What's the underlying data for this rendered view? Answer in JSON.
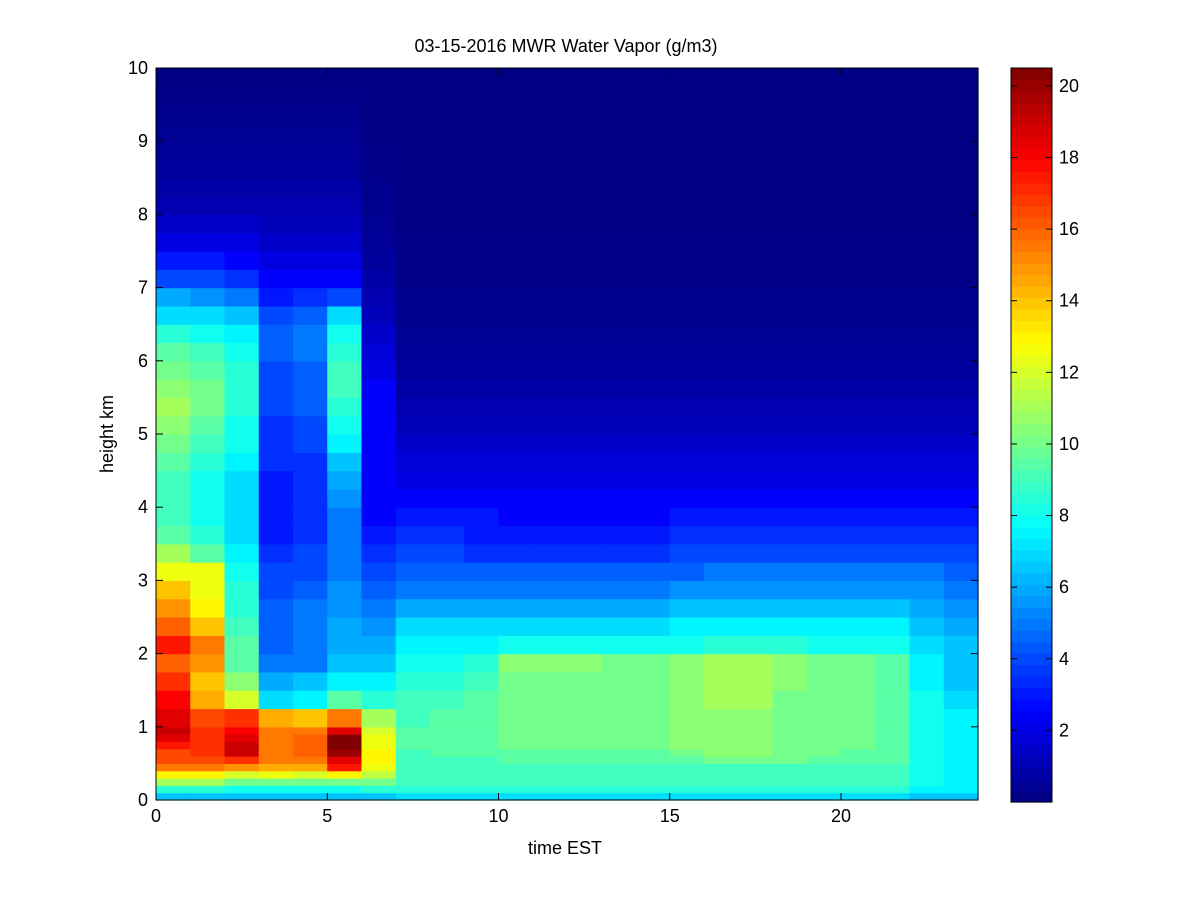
{
  "chart_data": {
    "type": "heatmap",
    "title": "03-15-2016 MWR Water Vapor (g/m3)",
    "xlabel": "time EST",
    "ylabel": "height km",
    "xlim": [
      0,
      24
    ],
    "ylim": [
      0,
      10
    ],
    "xticks": [
      0,
      5,
      10,
      15,
      20
    ],
    "yticks": [
      0,
      1,
      2,
      3,
      4,
      5,
      6,
      7,
      8,
      9,
      10
    ],
    "colorbar": {
      "colormap": "jet",
      "range": [
        0,
        20.5
      ],
      "ticks": [
        2,
        4,
        6,
        8,
        10,
        12,
        14,
        16,
        18,
        20
      ]
    },
    "x_bins_hours": [
      0,
      1,
      2,
      3,
      4,
      5,
      6,
      7,
      8,
      9,
      10,
      11,
      12,
      13,
      14,
      15,
      16,
      17,
      18,
      19,
      20,
      21,
      22,
      23
    ],
    "x_bin_width_hours": 1,
    "height_levels_km": [
      0,
      0.1,
      0.2,
      0.3,
      0.4,
      0.5,
      0.6,
      0.7,
      0.8,
      0.9,
      1.0,
      1.25,
      1.5,
      1.75,
      2.0,
      2.25,
      2.5,
      2.75,
      3.0,
      3.25,
      3.5,
      3.75,
      4.0,
      4.25,
      4.5,
      4.75,
      5.0,
      5.25,
      5.5,
      5.75,
      6.0,
      6.25,
      6.5,
      6.75,
      7.0,
      7.25,
      7.5,
      7.75,
      8.0,
      8.25,
      8.5,
      8.75,
      9.0,
      9.25,
      9.5,
      9.75
    ],
    "series_by_hour": [
      {
        "name": "0",
        "values": [
          6.5,
          8.5,
          11,
          13,
          15.5,
          16.5,
          16.5,
          17.5,
          18.5,
          19,
          18.5,
          18,
          17,
          16,
          17.5,
          16,
          15,
          14,
          12.5,
          11,
          9.5,
          9,
          9,
          9,
          9.5,
          10,
          10.5,
          11,
          10.5,
          10,
          9.5,
          8.5,
          7,
          6,
          4,
          3,
          2,
          1.5,
          1,
          0.8,
          0.6,
          0.5,
          0.4,
          0.3,
          0.2,
          0.1
        ]
      },
      {
        "name": "1",
        "values": [
          6.5,
          8.5,
          11,
          13,
          15.5,
          16.5,
          17,
          17,
          17,
          17,
          16.5,
          14.5,
          14,
          15,
          15.5,
          14,
          13,
          12.5,
          12.5,
          9.5,
          8.5,
          8,
          8,
          8,
          8.5,
          9,
          9.5,
          10,
          10,
          9.5,
          9,
          8,
          7,
          5.5,
          4,
          3,
          2,
          1.5,
          1,
          0.8,
          0.6,
          0.5,
          0.4,
          0.3,
          0.2,
          0.1
        ]
      },
      {
        "name": "2",
        "values": [
          6.5,
          8,
          10,
          12,
          15,
          17,
          19,
          19,
          18.5,
          18,
          17,
          12,
          10.5,
          9.5,
          9.5,
          9,
          8.5,
          8.5,
          8,
          7.5,
          7,
          7,
          7,
          7,
          7.5,
          8,
          8,
          8.5,
          8.5,
          8.5,
          8,
          7.5,
          6.5,
          5,
          3.5,
          2.5,
          2,
          1.5,
          1,
          0.8,
          0.6,
          0.5,
          0.4,
          0.3,
          0.2,
          0.1
        ]
      },
      {
        "name": "3",
        "values": [
          6.5,
          8,
          10,
          12.5,
          14.5,
          15.5,
          15.5,
          15.5,
          15.5,
          15.5,
          14.5,
          7,
          6,
          5,
          4.5,
          4.5,
          4.5,
          4,
          4,
          3.5,
          3,
          3,
          3,
          3,
          3.5,
          3.5,
          3.5,
          4,
          4,
          4,
          4.5,
          4.5,
          4,
          3,
          2.5,
          2,
          1.5,
          1.2,
          1,
          0.8,
          0.6,
          0.5,
          0.4,
          0.3,
          0.2,
          0.1
        ]
      },
      {
        "name": "4",
        "values": [
          6.5,
          8,
          10,
          12,
          14.5,
          15.5,
          16,
          16,
          16,
          15.5,
          14,
          7.5,
          6.5,
          5,
          5,
          5,
          5,
          4.5,
          4,
          4,
          3.5,
          3.5,
          3.5,
          3.5,
          3.5,
          4,
          4,
          4.5,
          4.5,
          4.5,
          5,
          5,
          4.5,
          3.5,
          2.5,
          2,
          1.5,
          1.2,
          1,
          0.8,
          0.6,
          0.5,
          0.4,
          0.3,
          0.2,
          0.1
        ]
      },
      {
        "name": "5",
        "values": [
          6.5,
          8,
          10,
          13,
          17.5,
          18.5,
          20,
          20.5,
          20.5,
          18.5,
          15.5,
          9.5,
          7.5,
          6.5,
          6,
          6,
          5.5,
          5.5,
          5,
          5,
          5,
          5,
          5.5,
          6,
          6.5,
          7.5,
          8,
          8.5,
          9,
          9,
          8.5,
          8,
          7,
          4,
          2.5,
          2,
          1.5,
          1.2,
          1,
          0.8,
          0.6,
          0.5,
          0.4,
          0.3,
          0.2,
          0.1
        ]
      },
      {
        "name": "6",
        "values": [
          6.5,
          8.5,
          10,
          11.5,
          12.5,
          13,
          13,
          12.5,
          12.5,
          12,
          11,
          8.5,
          7.5,
          6.5,
          6,
          5.5,
          5,
          4.5,
          4,
          3.5,
          3,
          2.5,
          2.5,
          2.5,
          2.5,
          2.5,
          2.5,
          2.5,
          2.5,
          2,
          1.8,
          1.5,
          1.2,
          1,
          0.8,
          0.6,
          0.5,
          0.4,
          0.3,
          0.3,
          0.2,
          0.2,
          0.1,
          0.1,
          0.1,
          0.1
        ]
      },
      {
        "name": "7",
        "values": [
          7,
          8.5,
          9,
          9,
          9,
          9,
          9,
          9.5,
          9.5,
          9.5,
          9,
          9,
          8.5,
          8,
          7.5,
          7,
          6,
          5,
          4.5,
          4,
          3.5,
          3,
          2.5,
          2,
          1.8,
          1.5,
          1.2,
          1,
          0.8,
          0.6,
          0.5,
          0.4,
          0.3,
          0.3,
          0.2,
          0.2,
          0.2,
          0.1,
          0.1,
          0.1,
          0.1,
          0.1,
          0.1,
          0.1,
          0.1,
          0.1
        ]
      },
      {
        "name": "8",
        "values": [
          7,
          8.5,
          9,
          9,
          9,
          9,
          9.5,
          9.5,
          9.5,
          9.5,
          9.5,
          9,
          8.5,
          8,
          7.5,
          7,
          6,
          5,
          4.5,
          4,
          3.5,
          3,
          2.5,
          2,
          1.8,
          1.5,
          1.2,
          1,
          0.8,
          0.6,
          0.5,
          0.4,
          0.3,
          0.3,
          0.2,
          0.2,
          0.2,
          0.1,
          0.1,
          0.1,
          0.1,
          0.1,
          0.1,
          0.1,
          0.1,
          0.1
        ]
      },
      {
        "name": "9",
        "values": [
          7,
          8.5,
          9,
          9,
          9,
          9,
          9.5,
          9.5,
          9.5,
          9.5,
          9.5,
          9.5,
          9,
          8.5,
          7.5,
          7,
          6,
          5,
          4.5,
          3.5,
          3,
          3,
          2.5,
          2,
          1.8,
          1.5,
          1.2,
          1,
          0.8,
          0.6,
          0.5,
          0.4,
          0.3,
          0.3,
          0.2,
          0.2,
          0.2,
          0.1,
          0.1,
          0.1,
          0.1,
          0.1,
          0.1,
          0.1,
          0.1,
          0.1
        ]
      },
      {
        "name": "10",
        "values": [
          7,
          8.5,
          9,
          9,
          9,
          9.5,
          9.5,
          10,
          10,
          10,
          10,
          10,
          10,
          10.5,
          8,
          7,
          6,
          5,
          4.5,
          3.5,
          3,
          2.5,
          2.5,
          2,
          1.8,
          1.5,
          1.2,
          1,
          0.8,
          0.6,
          0.5,
          0.4,
          0.3,
          0.3,
          0.2,
          0.2,
          0.2,
          0.1,
          0.1,
          0.1,
          0.1,
          0.1,
          0.1,
          0.1,
          0.1,
          0.1
        ]
      },
      {
        "name": "11",
        "values": [
          7,
          8.5,
          9,
          9,
          9,
          9.5,
          9.5,
          10,
          10,
          10,
          10,
          10,
          10,
          10.5,
          8,
          7,
          6,
          5,
          4.5,
          3.5,
          3,
          2.5,
          2.5,
          2,
          1.8,
          1.5,
          1.2,
          1,
          0.8,
          0.6,
          0.5,
          0.4,
          0.3,
          0.3,
          0.2,
          0.2,
          0.2,
          0.1,
          0.1,
          0.1,
          0.1,
          0.1,
          0.1,
          0.1,
          0.1,
          0.1
        ]
      },
      {
        "name": "12",
        "values": [
          7,
          8.5,
          9,
          9,
          9,
          9.5,
          9.5,
          10,
          10,
          10,
          10,
          10,
          10,
          10.5,
          8,
          7,
          6,
          5,
          4.5,
          3.5,
          3,
          2.5,
          2.5,
          2,
          1.8,
          1.5,
          1.2,
          1,
          0.8,
          0.6,
          0.5,
          0.4,
          0.3,
          0.3,
          0.2,
          0.2,
          0.2,
          0.1,
          0.1,
          0.1,
          0.1,
          0.1,
          0.1,
          0.1,
          0.1,
          0.1
        ]
      },
      {
        "name": "13",
        "values": [
          7,
          8.5,
          9,
          9,
          9,
          9.5,
          9.5,
          10,
          10,
          10,
          10,
          10,
          10,
          10,
          8,
          7,
          6,
          5,
          4.5,
          3.5,
          3,
          2.5,
          2.5,
          2,
          1.8,
          1.5,
          1.2,
          1,
          0.8,
          0.6,
          0.5,
          0.4,
          0.3,
          0.3,
          0.2,
          0.2,
          0.2,
          0.1,
          0.1,
          0.1,
          0.1,
          0.1,
          0.1,
          0.1,
          0.1,
          0.1
        ]
      },
      {
        "name": "14",
        "values": [
          7,
          8.5,
          9,
          9,
          9,
          9.5,
          9.5,
          10,
          10,
          10,
          10,
          10,
          10,
          10,
          8,
          7,
          6,
          5,
          4.5,
          3.5,
          3,
          2.5,
          2.5,
          2,
          1.8,
          1.5,
          1.2,
          1,
          0.8,
          0.6,
          0.5,
          0.4,
          0.3,
          0.3,
          0.2,
          0.2,
          0.2,
          0.1,
          0.1,
          0.1,
          0.1,
          0.1,
          0.1,
          0.1,
          0.1,
          0.1
        ]
      },
      {
        "name": "15",
        "values": [
          7,
          8.5,
          9,
          9,
          9,
          9.5,
          10,
          10.5,
          10.5,
          10.5,
          10.5,
          10.5,
          10.5,
          10.5,
          8,
          7.5,
          6.5,
          5.5,
          4.5,
          4,
          3.5,
          3,
          2.5,
          2,
          1.8,
          1.5,
          1.2,
          1,
          0.8,
          0.6,
          0.5,
          0.4,
          0.3,
          0.3,
          0.2,
          0.2,
          0.2,
          0.1,
          0.1,
          0.1,
          0.1,
          0.1,
          0.1,
          0.1,
          0.1,
          0.1
        ]
      },
      {
        "name": "16",
        "values": [
          7,
          8.5,
          9,
          9,
          9,
          10,
          10.5,
          10.5,
          10.5,
          10.5,
          10.5,
          11,
          11,
          11,
          8.5,
          7.5,
          6.5,
          5.5,
          5,
          4,
          3.5,
          3,
          2.5,
          2,
          1.8,
          1.5,
          1.2,
          1,
          0.8,
          0.6,
          0.5,
          0.4,
          0.3,
          0.3,
          0.2,
          0.2,
          0.2,
          0.1,
          0.1,
          0.1,
          0.1,
          0.1,
          0.1,
          0.1,
          0.1,
          0.1
        ]
      },
      {
        "name": "17",
        "values": [
          7,
          8.5,
          9,
          9,
          9,
          10,
          10.5,
          10.5,
          10.5,
          10.5,
          10.5,
          11,
          11,
          11,
          8.5,
          7.5,
          6.5,
          5.5,
          5,
          4,
          3.5,
          3,
          2.5,
          2,
          1.8,
          1.5,
          1.2,
          1,
          0.8,
          0.6,
          0.5,
          0.4,
          0.3,
          0.3,
          0.2,
          0.2,
          0.2,
          0.1,
          0.1,
          0.1,
          0.1,
          0.1,
          0.1,
          0.1,
          0.1,
          0.1
        ]
      },
      {
        "name": "18",
        "values": [
          7,
          8.5,
          9,
          9,
          9,
          10,
          10,
          10,
          10,
          10,
          10,
          10,
          10.5,
          10.5,
          8.5,
          7.5,
          6.5,
          5.5,
          5,
          4,
          3.5,
          3,
          2.5,
          2,
          1.8,
          1.5,
          1.2,
          1,
          0.8,
          0.6,
          0.5,
          0.4,
          0.3,
          0.3,
          0.2,
          0.2,
          0.2,
          0.1,
          0.1,
          0.1,
          0.1,
          0.1,
          0.1,
          0.1,
          0.1,
          0.1
        ]
      },
      {
        "name": "19",
        "values": [
          7,
          8.5,
          9,
          9,
          9,
          9.5,
          10,
          10,
          10,
          10,
          10,
          10,
          10,
          10,
          8,
          7.5,
          6.5,
          5.5,
          5,
          4,
          3.5,
          3,
          2.5,
          2,
          1.8,
          1.5,
          1.2,
          1,
          0.8,
          0.6,
          0.5,
          0.4,
          0.3,
          0.3,
          0.2,
          0.2,
          0.2,
          0.1,
          0.1,
          0.1,
          0.1,
          0.1,
          0.1,
          0.1,
          0.1,
          0.1
        ]
      },
      {
        "name": "20",
        "values": [
          7,
          8.5,
          9,
          9,
          9,
          9.5,
          9.5,
          10,
          10,
          10,
          10,
          10,
          10,
          10,
          8,
          7.5,
          6.5,
          5.5,
          5,
          4,
          3.5,
          3,
          2.5,
          2,
          1.8,
          1.5,
          1.2,
          1,
          0.8,
          0.6,
          0.5,
          0.4,
          0.3,
          0.3,
          0.2,
          0.2,
          0.2,
          0.1,
          0.1,
          0.1,
          0.1,
          0.1,
          0.1,
          0.1,
          0.1,
          0.1
        ]
      },
      {
        "name": "21",
        "values": [
          7,
          8.5,
          9,
          9,
          9,
          9.5,
          9.5,
          9.5,
          9.5,
          9.5,
          9.5,
          9.5,
          9.5,
          9.5,
          8,
          7.5,
          6.5,
          5.5,
          5,
          4,
          3.5,
          3,
          2.5,
          2,
          1.8,
          1.5,
          1.2,
          1,
          0.8,
          0.6,
          0.5,
          0.4,
          0.3,
          0.3,
          0.2,
          0.2,
          0.2,
          0.1,
          0.1,
          0.1,
          0.1,
          0.1,
          0.1,
          0.1,
          0.1,
          0.1
        ]
      },
      {
        "name": "22",
        "values": [
          6.5,
          7.5,
          8,
          8,
          8,
          8,
          8,
          8,
          8,
          8,
          8,
          8,
          7.5,
          7.5,
          7,
          6.5,
          6,
          5.5,
          5,
          4,
          3.5,
          3,
          2.5,
          2,
          1.8,
          1.5,
          1.2,
          1,
          0.8,
          0.6,
          0.5,
          0.4,
          0.3,
          0.3,
          0.2,
          0.2,
          0.2,
          0.1,
          0.1,
          0.1,
          0.1,
          0.1,
          0.1,
          0.1,
          0.1,
          0.1
        ]
      },
      {
        "name": "23",
        "values": [
          6.5,
          7.5,
          7.5,
          7.5,
          7.5,
          7.5,
          7.5,
          7.5,
          7.5,
          7.5,
          7.5,
          7,
          6.5,
          6.5,
          6.5,
          6,
          5.5,
          5,
          4.5,
          4,
          3.5,
          3,
          2.5,
          2,
          1.8,
          1.5,
          1.2,
          1,
          0.8,
          0.6,
          0.5,
          0.4,
          0.3,
          0.3,
          0.2,
          0.2,
          0.2,
          0.1,
          0.1,
          0.1,
          0.1,
          0.1,
          0.1,
          0.1,
          0.1,
          0.1
        ]
      }
    ]
  }
}
